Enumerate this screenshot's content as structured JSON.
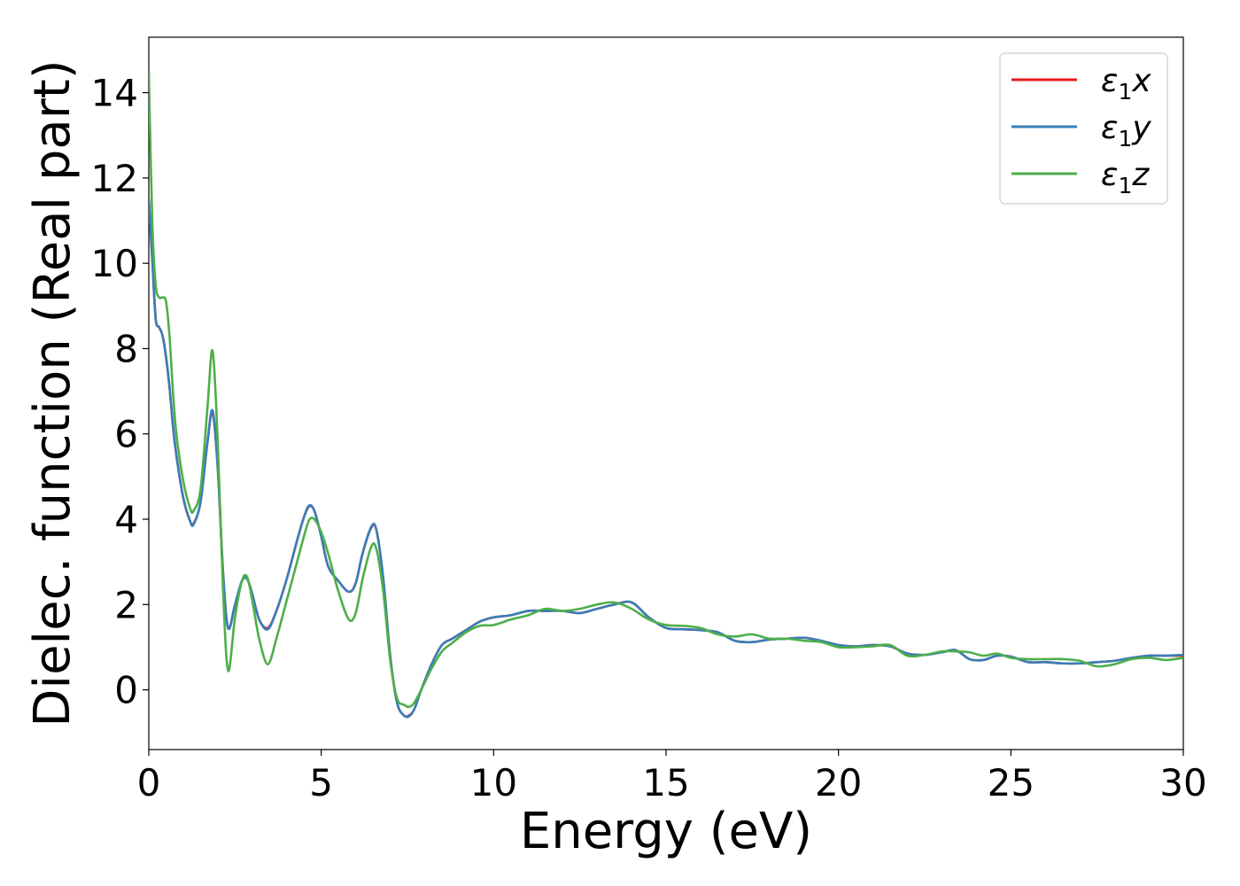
{
  "chart_data": {
    "type": "line",
    "title": "",
    "xlabel": "Energy (eV)",
    "ylabel": "Dielec. function (Real part)",
    "xlim": [
      0,
      30
    ],
    "ylim": [
      -1.4,
      15.3
    ],
    "xticks": [
      0,
      5,
      10,
      15,
      20,
      25,
      30
    ],
    "yticks": [
      0,
      2,
      4,
      6,
      8,
      10,
      12,
      14
    ],
    "grid": false,
    "legend_position": "top-right",
    "series": [
      {
        "name": "ε₁x",
        "legend_symbol": "ε",
        "legend_sub": "1",
        "legend_var": "x",
        "color": "#e41a1c",
        "x": [
          0,
          0.1,
          0.2,
          0.3,
          0.4,
          0.5,
          0.6,
          0.7,
          0.8,
          1.0,
          1.2,
          1.3,
          1.5,
          1.7,
          1.85,
          2.0,
          2.15,
          2.3,
          2.5,
          2.7,
          2.85,
          3.0,
          3.2,
          3.45,
          3.7,
          4.0,
          4.3,
          4.5,
          4.65,
          4.8,
          5.0,
          5.2,
          5.5,
          5.8,
          6.0,
          6.2,
          6.45,
          6.6,
          6.8,
          7.0,
          7.2,
          7.4,
          7.55,
          7.7,
          7.9,
          8.2,
          8.5,
          8.8,
          9.2,
          9.6,
          10.0,
          10.5,
          11.0,
          11.5,
          12.0,
          12.5,
          13.0,
          13.5,
          14.0,
          14.5,
          15.0,
          15.5,
          16.0,
          16.5,
          17.0,
          17.5,
          18.0,
          18.5,
          19.0,
          19.5,
          20.0,
          20.5,
          21.0,
          21.5,
          22.0,
          22.5,
          23.0,
          23.4,
          23.8,
          24.2,
          24.6,
          25.0,
          25.5,
          26.0,
          26.5,
          27.0,
          27.5,
          28.0,
          28.5,
          29.0,
          29.5,
          30.0
        ],
        "values": [
          11.5,
          10.1,
          8.7,
          8.5,
          8.3,
          7.8,
          7.1,
          6.2,
          5.5,
          4.5,
          3.95,
          3.9,
          4.4,
          5.8,
          6.5,
          5.2,
          2.8,
          1.45,
          2.0,
          2.55,
          2.6,
          2.25,
          1.65,
          1.45,
          1.85,
          2.6,
          3.5,
          4.05,
          4.3,
          4.2,
          3.6,
          2.9,
          2.55,
          2.3,
          2.5,
          3.2,
          3.8,
          3.75,
          2.6,
          0.8,
          -0.3,
          -0.6,
          -0.6,
          -0.45,
          0.0,
          0.6,
          1.05,
          1.2,
          1.4,
          1.6,
          1.7,
          1.75,
          1.85,
          1.85,
          1.85,
          1.8,
          1.9,
          2.0,
          2.05,
          1.7,
          1.45,
          1.42,
          1.4,
          1.35,
          1.15,
          1.12,
          1.18,
          1.2,
          1.22,
          1.15,
          1.05,
          1.02,
          1.05,
          1.02,
          0.85,
          0.82,
          0.88,
          0.93,
          0.72,
          0.7,
          0.8,
          0.78,
          0.65,
          0.65,
          0.62,
          0.62,
          0.65,
          0.68,
          0.75,
          0.8,
          0.8,
          0.8
        ]
      },
      {
        "name": "ε₁y",
        "legend_symbol": "ε",
        "legend_sub": "1",
        "legend_var": "y",
        "color": "#377eb8",
        "x": [
          0,
          0.1,
          0.2,
          0.3,
          0.4,
          0.5,
          0.6,
          0.7,
          0.8,
          1.0,
          1.2,
          1.3,
          1.5,
          1.7,
          1.85,
          2.0,
          2.15,
          2.3,
          2.5,
          2.7,
          2.85,
          3.0,
          3.2,
          3.45,
          3.7,
          4.0,
          4.3,
          4.5,
          4.65,
          4.8,
          5.0,
          5.2,
          5.5,
          5.8,
          6.0,
          6.2,
          6.45,
          6.6,
          6.8,
          7.0,
          7.2,
          7.4,
          7.55,
          7.7,
          7.9,
          8.2,
          8.5,
          8.8,
          9.2,
          9.6,
          10.0,
          10.5,
          11.0,
          11.5,
          12.0,
          12.5,
          13.0,
          13.5,
          14.0,
          14.5,
          15.0,
          15.5,
          16.0,
          16.5,
          17.0,
          17.5,
          18.0,
          18.5,
          19.0,
          19.5,
          20.0,
          20.5,
          21.0,
          21.5,
          22.0,
          22.5,
          23.0,
          23.4,
          23.8,
          24.2,
          24.6,
          25.0,
          25.5,
          26.0,
          26.5,
          27.0,
          27.5,
          28.0,
          28.5,
          29.0,
          29.5,
          30.0
        ],
        "values": [
          11.5,
          10.1,
          8.7,
          8.5,
          8.3,
          7.8,
          7.1,
          6.2,
          5.5,
          4.5,
          3.95,
          3.88,
          4.4,
          5.8,
          6.55,
          5.2,
          2.8,
          1.45,
          2.0,
          2.55,
          2.6,
          2.25,
          1.65,
          1.42,
          1.85,
          2.6,
          3.5,
          4.05,
          4.32,
          4.2,
          3.6,
          2.9,
          2.55,
          2.3,
          2.5,
          3.2,
          3.82,
          3.75,
          2.6,
          0.8,
          -0.3,
          -0.6,
          -0.62,
          -0.45,
          0.0,
          0.6,
          1.05,
          1.2,
          1.4,
          1.6,
          1.7,
          1.75,
          1.85,
          1.85,
          1.85,
          1.8,
          1.9,
          2.0,
          2.05,
          1.7,
          1.45,
          1.42,
          1.4,
          1.35,
          1.15,
          1.12,
          1.18,
          1.2,
          1.22,
          1.15,
          1.05,
          1.02,
          1.05,
          1.02,
          0.85,
          0.82,
          0.88,
          0.93,
          0.72,
          0.7,
          0.8,
          0.78,
          0.65,
          0.65,
          0.62,
          0.62,
          0.65,
          0.68,
          0.75,
          0.8,
          0.8,
          0.82
        ]
      },
      {
        "name": "ε₁z",
        "legend_symbol": "ε",
        "legend_sub": "1",
        "legend_var": "z",
        "color": "#4daf4a",
        "x": [
          0,
          0.1,
          0.2,
          0.3,
          0.4,
          0.5,
          0.6,
          0.7,
          0.8,
          1.0,
          1.2,
          1.3,
          1.5,
          1.7,
          1.85,
          2.0,
          2.15,
          2.3,
          2.5,
          2.7,
          2.85,
          3.0,
          3.2,
          3.45,
          3.7,
          4.0,
          4.3,
          4.5,
          4.65,
          4.8,
          5.0,
          5.2,
          5.5,
          5.8,
          6.0,
          6.2,
          6.45,
          6.6,
          6.8,
          7.0,
          7.2,
          7.4,
          7.55,
          7.7,
          7.9,
          8.2,
          8.5,
          8.8,
          9.2,
          9.6,
          10.0,
          10.5,
          11.0,
          11.5,
          12.0,
          12.5,
          13.0,
          13.5,
          14.0,
          14.5,
          15.0,
          15.5,
          16.0,
          16.5,
          17.0,
          17.5,
          18.0,
          18.5,
          19.0,
          19.5,
          20.0,
          20.5,
          21.0,
          21.5,
          22.0,
          22.5,
          23.0,
          23.4,
          23.8,
          24.2,
          24.6,
          25.0,
          25.5,
          26.0,
          26.5,
          27.0,
          27.5,
          28.0,
          28.5,
          29.0,
          29.5,
          30.0
        ],
        "values": [
          14.5,
          11.0,
          9.5,
          9.2,
          9.2,
          9.1,
          8.3,
          7.0,
          6.0,
          4.9,
          4.25,
          4.2,
          4.7,
          6.6,
          7.95,
          5.8,
          2.4,
          0.45,
          1.7,
          2.55,
          2.65,
          2.1,
          1.2,
          0.6,
          1.2,
          2.1,
          3.0,
          3.6,
          3.98,
          4.0,
          3.7,
          3.2,
          2.3,
          1.65,
          1.8,
          2.6,
          3.35,
          3.3,
          2.3,
          0.7,
          -0.2,
          -0.35,
          -0.4,
          -0.3,
          0.0,
          0.5,
          0.9,
          1.1,
          1.35,
          1.5,
          1.52,
          1.65,
          1.75,
          1.9,
          1.85,
          1.9,
          2.0,
          2.05,
          1.9,
          1.65,
          1.52,
          1.5,
          1.45,
          1.3,
          1.25,
          1.3,
          1.2,
          1.2,
          1.15,
          1.12,
          1.0,
          1.0,
          1.02,
          1.05,
          0.8,
          0.82,
          0.9,
          0.9,
          0.88,
          0.8,
          0.85,
          0.75,
          0.72,
          0.72,
          0.72,
          0.68,
          0.55,
          0.6,
          0.72,
          0.75,
          0.7,
          0.75
        ]
      }
    ]
  }
}
